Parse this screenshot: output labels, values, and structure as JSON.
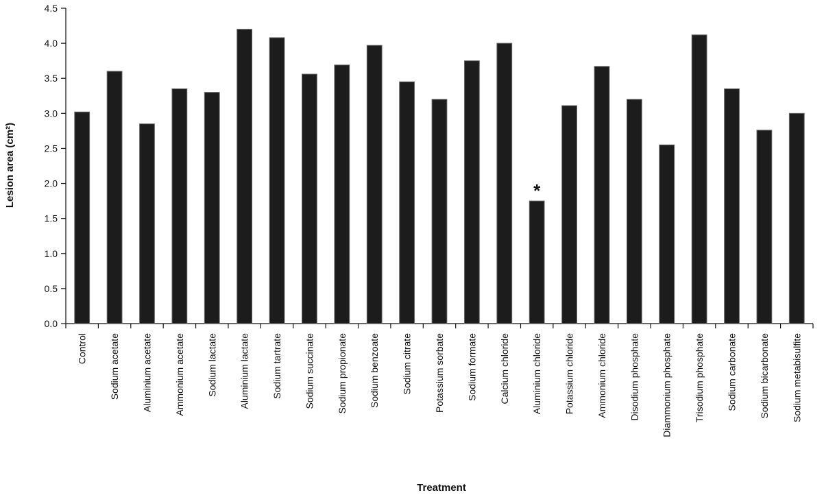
{
  "chart_data": {
    "type": "bar",
    "title": "",
    "xlabel": "Treatment",
    "ylabel": "Lesion area (cm²)",
    "ylim": [
      0,
      4.5
    ],
    "yticks": [
      "0.0",
      "0.5",
      "1.0",
      "1.5",
      "2.0",
      "2.5",
      "3.0",
      "3.5",
      "4.0",
      "4.5"
    ],
    "categories": [
      "Control",
      "Sodium acetate",
      "Aluminium acetate",
      "Ammonium acetate",
      "Sodium lactate",
      "Aluminium lactate",
      "Sodium tartrate",
      "Sodium succinate",
      "Sodium propionate",
      "Sodium benzoate",
      "Sodium citrate",
      "Potassium sorbate",
      "Sodium formate",
      "Calcium chloride",
      "Aluminium chloride",
      "Potassium chloride",
      "Ammonium chloride",
      "Disodium phosphate",
      "Diammonium phosphate",
      "Trisodium phosphate",
      "Sodium carbonate",
      "Sodium bicarbonate",
      "Sodium metabisulfite"
    ],
    "values": [
      3.02,
      3.6,
      2.85,
      3.35,
      3.3,
      4.2,
      4.08,
      3.56,
      3.69,
      3.97,
      3.45,
      3.2,
      3.75,
      4.0,
      1.75,
      3.11,
      3.67,
      3.2,
      2.55,
      4.12,
      3.35,
      2.76,
      3.0
    ],
    "bar_color": "#1c1c1c",
    "grid": false,
    "annotations": [
      {
        "category": "Aluminium chloride",
        "text": "*"
      }
    ]
  }
}
